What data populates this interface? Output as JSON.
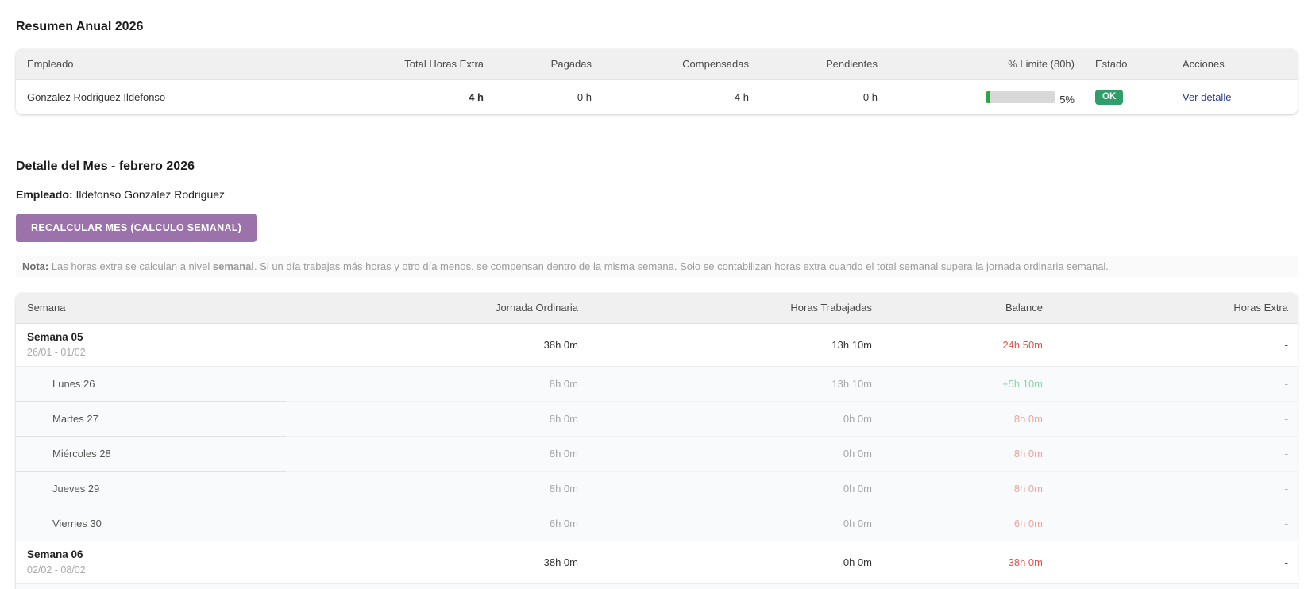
{
  "colors": {
    "accent_purple": "#9b72aa",
    "ok_green": "#2f9e68",
    "bar_green": "#28a745",
    "link_navy": "#2c3a8e",
    "negative_red": "#e0544a",
    "negative_light": "#f1a29a",
    "positive_light": "#85d9ab"
  },
  "annual_summary": {
    "title": "Resumen Anual 2026",
    "columns": [
      "Empleado",
      "Total Horas Extra",
      "Pagadas",
      "Compensadas",
      "Pendientes",
      "% Limite (80h)",
      "Estado",
      "Acciones"
    ],
    "row": {
      "employee": "Gonzalez Rodriguez Ildefonso",
      "total_extra": "4 h",
      "paid": "0 h",
      "compensated": "4 h",
      "pending": "0 h",
      "limit_percent": "5%",
      "limit_percent_value": 5,
      "status": "OK",
      "action": "Ver detalle"
    }
  },
  "month_detail": {
    "title": "Detalle del Mes - febrero 2026",
    "employee_label": "Empleado:",
    "employee_name": "Ildefonso Gonzalez Rodriguez",
    "recalculate_button": "RECALCULAR MES (CALCULO SEMANAL)",
    "note": {
      "label": "Nota:",
      "part1": " Las horas extra se calculan a nivel ",
      "bold": "semanal",
      "part2": ". Si un día trabajas más horas y otro día menos, se compensan dentro de la misma semana. Solo se contabilizan horas extra cuando el total semanal supera la jornada ordinaria semanal."
    }
  },
  "week_table": {
    "columns": [
      "Semana",
      "Jornada Ordinaria",
      "Horas Trabajadas",
      "Balance",
      "Horas Extra"
    ],
    "rows": [
      {
        "type": "week",
        "label": "Semana 05",
        "range": "26/01 - 01/02",
        "ordinary": "38h 0m",
        "worked": "13h 10m",
        "balance": "24h 50m",
        "balance_tone": "neg-strong",
        "extra": "-"
      },
      {
        "type": "day",
        "label": "Lunes 26",
        "ordinary": "8h 0m",
        "worked": "13h 10m",
        "balance": "+5h 10m",
        "balance_tone": "pos",
        "extra": "-"
      },
      {
        "type": "day",
        "label": "Martes 27",
        "ordinary": "8h 0m",
        "worked": "0h 0m",
        "balance": "8h 0m",
        "balance_tone": "neg",
        "extra": "-"
      },
      {
        "type": "day",
        "label": "Miércoles 28",
        "ordinary": "8h 0m",
        "worked": "0h 0m",
        "balance": "8h 0m",
        "balance_tone": "neg",
        "extra": "-"
      },
      {
        "type": "day",
        "label": "Jueves 29",
        "ordinary": "8h 0m",
        "worked": "0h 0m",
        "balance": "8h 0m",
        "balance_tone": "neg",
        "extra": "-"
      },
      {
        "type": "day",
        "label": "Viernes 30",
        "ordinary": "6h 0m",
        "worked": "0h 0m",
        "balance": "6h 0m",
        "balance_tone": "neg",
        "extra": "-"
      },
      {
        "type": "week",
        "label": "Semana 06",
        "range": "02/02 - 08/02",
        "ordinary": "38h 0m",
        "worked": "0h 0m",
        "balance": "38h 0m",
        "balance_tone": "neg-strong",
        "extra": "-"
      },
      {
        "type": "day",
        "label": "",
        "ordinary": "",
        "worked": "",
        "balance": "",
        "extra": ""
      }
    ]
  }
}
